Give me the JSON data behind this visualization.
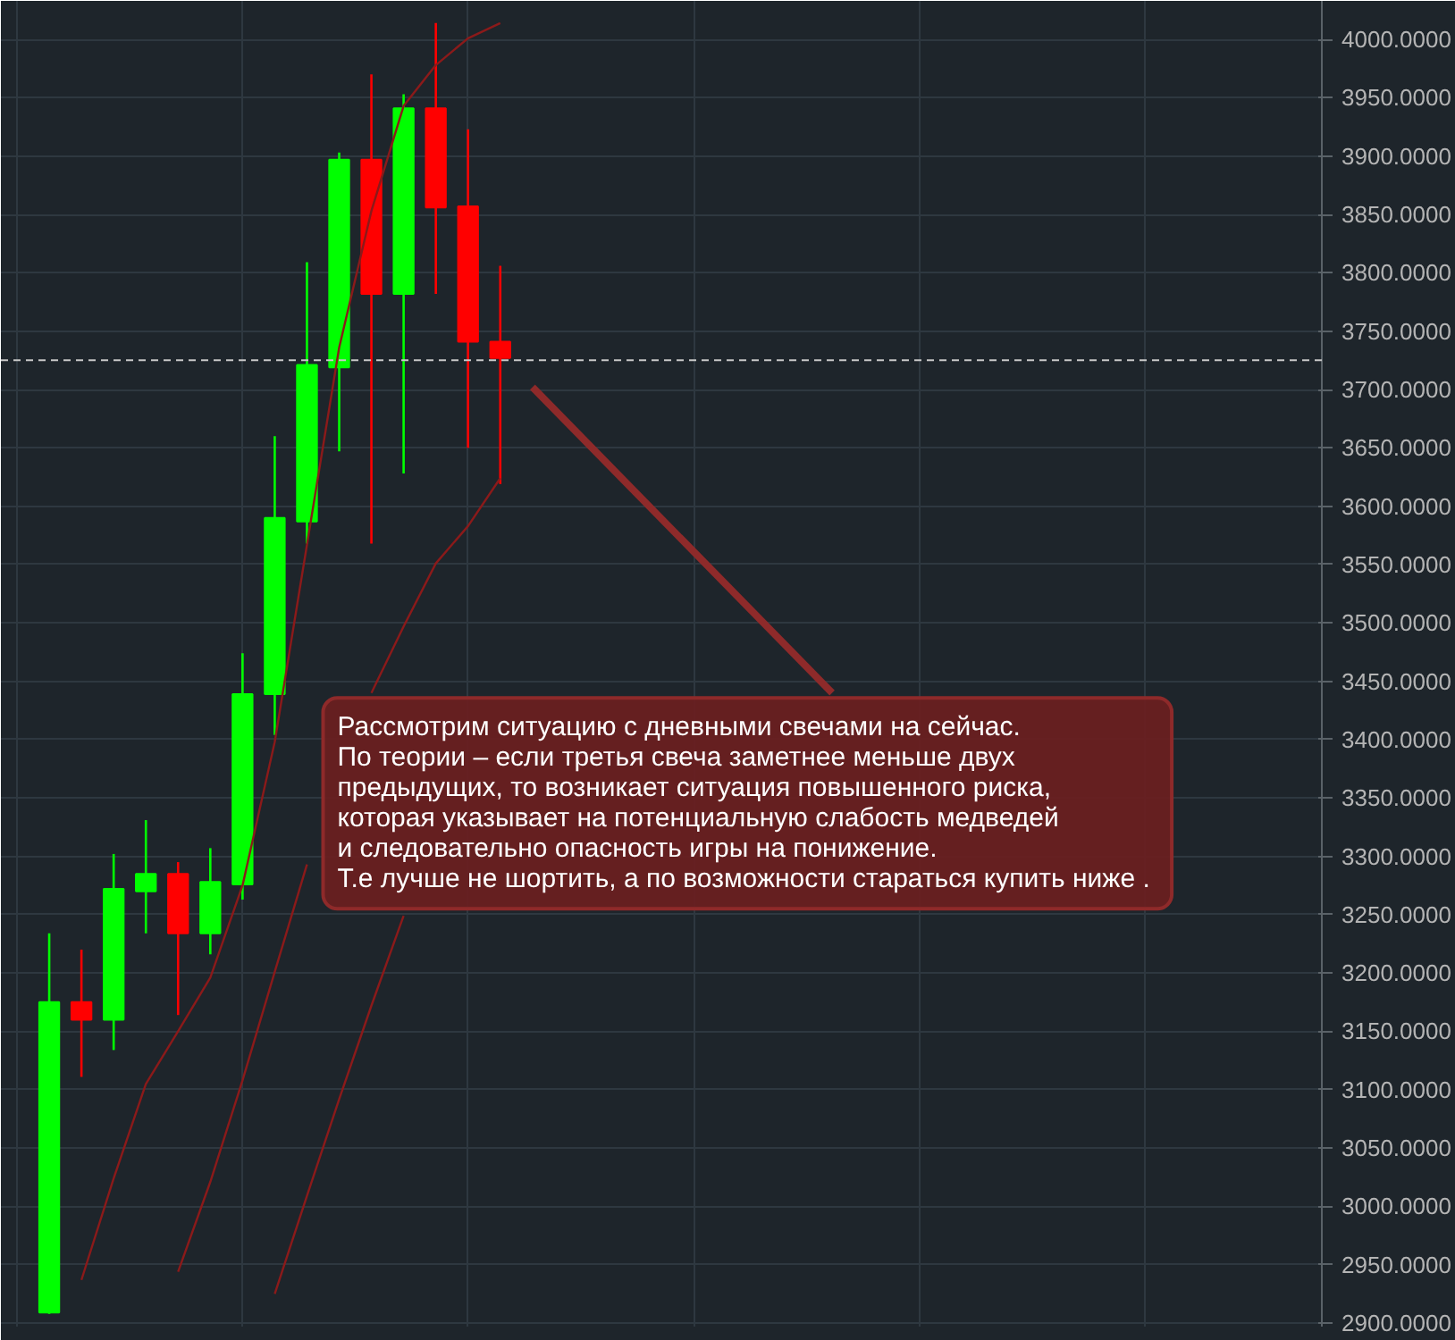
{
  "chart_data": {
    "type": "candlestick",
    "categories": [
      null,
      null,
      null,
      null,
      null,
      null,
      null,
      null,
      null,
      null,
      null,
      null,
      null,
      null,
      null,
      null,
      null,
      null,
      null,
      null,
      null,
      null,
      null,
      null,
      null,
      null,
      null,
      null,
      null,
      null,
      null,
      null,
      null,
      null,
      null,
      null,
      null,
      null,
      null,
      null,
      null
    ],
    "ohlc": [
      null,
      [
        2909,
        3234,
        2908,
        3175
      ],
      [
        3175,
        3220,
        3111,
        3160
      ],
      [
        3160,
        3302,
        3134,
        3272
      ],
      [
        3270,
        3331,
        3234,
        3285
      ],
      [
        3285,
        3295,
        3164,
        3234
      ],
      [
        3234,
        3307,
        3216,
        3278
      ],
      [
        3276,
        3474,
        3263,
        3439
      ],
      [
        3439,
        3660,
        3404,
        3590
      ],
      [
        3587,
        3809,
        3568,
        3721
      ],
      [
        3719,
        3903,
        3647,
        3897
      ],
      [
        3897,
        3970,
        3568,
        3782
      ],
      [
        3782,
        3953,
        3628,
        3941
      ],
      [
        3941,
        4014,
        3782,
        3856
      ],
      [
        3857,
        3923,
        3650,
        3741
      ],
      [
        3741,
        3806,
        3619,
        3727
      ],
      null,
      null,
      null,
      null,
      null,
      null,
      null,
      null,
      null,
      null,
      null,
      null,
      null,
      null,
      null,
      null,
      null,
      null,
      null,
      null,
      null,
      null,
      null,
      null,
      null
    ],
    "colors": [
      null,
      "#00ff00",
      "#ff0000",
      "#00ff00",
      "#00ff00",
      "#ff0000",
      "#00ff00",
      "#00ff00",
      "#00ff00",
      "#00ff00",
      "#00ff00",
      "#ff0000",
      "#00ff00",
      "#ff0000",
      "#ff0000",
      "#ff0000",
      null,
      null,
      null,
      null,
      null,
      null,
      null,
      null,
      null,
      null,
      null,
      null,
      null,
      null,
      null,
      null,
      null,
      null,
      null,
      null,
      null,
      null,
      null,
      null,
      null
    ],
    "series": [
      {
        "type": "line",
        "color": "#8b1a1a",
        "values": [
          null,
          null,
          2937,
          3024,
          3105,
          3150,
          3196,
          3275,
          3398,
          3567,
          3736,
          3853,
          3943,
          3978,
          4001,
          4014,
          null,
          null,
          null,
          null,
          null,
          null,
          null,
          null,
          null,
          null,
          null,
          null,
          null,
          null,
          null,
          null,
          null,
          null,
          null,
          null,
          null,
          null,
          null,
          null,
          null
        ]
      },
      {
        "type": "line",
        "color": "#8b1a1a",
        "values": [
          null,
          null,
          null,
          null,
          null,
          2944,
          3021,
          3108,
          3201,
          3293,
          null,
          3440,
          3497,
          3551,
          3583,
          3624,
          null,
          null,
          null,
          null,
          null,
          null,
          null,
          null,
          null,
          null,
          null,
          null,
          null,
          null,
          null,
          null,
          null,
          null,
          null,
          null,
          null,
          null,
          null,
          null,
          null
        ]
      },
      {
        "type": "line",
        "color": "#8b1a1a",
        "values": [
          null,
          null,
          null,
          null,
          null,
          null,
          null,
          null,
          2925,
          3009,
          3092,
          3172,
          3249,
          null,
          null,
          null,
          null,
          null,
          null,
          null,
          null,
          null,
          null,
          null,
          null,
          null,
          null,
          null,
          null,
          null,
          null,
          null,
          null,
          null,
          null,
          null,
          null,
          null,
          null,
          null,
          null
        ]
      }
    ],
    "ylim": [
      2897,
      4033
    ],
    "yticks": [
      {
        "value": 2900,
        "label": "2900.0000"
      },
      {
        "value": 2950,
        "label": "2950.0000"
      },
      {
        "value": 3000,
        "label": "3000.0000"
      },
      {
        "value": 3050,
        "label": "3050.0000"
      },
      {
        "value": 3100,
        "label": "3100.0000"
      },
      {
        "value": 3150,
        "label": "3150.0000"
      },
      {
        "value": 3200,
        "label": "3200.0000"
      },
      {
        "value": 3250,
        "label": "3250.0000"
      },
      {
        "value": 3300,
        "label": "3300.0000"
      },
      {
        "value": 3350,
        "label": "3350.0000"
      },
      {
        "value": 3400,
        "label": "3400.0000"
      },
      {
        "value": 3450,
        "label": "3450.0000"
      },
      {
        "value": 3500,
        "label": "3500.0000"
      },
      {
        "value": 3550,
        "label": "3550.0000"
      },
      {
        "value": 3600,
        "label": "3600.0000"
      },
      {
        "value": 3650,
        "label": "3650.0000"
      },
      {
        "value": 3700,
        "label": "3700.0000"
      },
      {
        "value": 3750,
        "label": "3750.0000"
      },
      {
        "value": 3800,
        "label": "3800.0000"
      },
      {
        "value": 3850,
        "label": "3850.0000"
      },
      {
        "value": 3900,
        "label": "3900.0000"
      },
      {
        "value": 3950,
        "label": "3950.0000"
      },
      {
        "value": 4000,
        "label": "4000.0000"
      }
    ],
    "tick_labels": "y",
    "grid": true,
    "ref_lines": [
      {
        "axis": "y",
        "value": 3725,
        "color": "#c8c8c8",
        "line_style": "dashed"
      }
    ],
    "annotations": [
      "Рассмотрим ситуацию с дневными свечами на сейчас.\nПо теории – если третья свеча заметнее меньше двух\nпредыдущих, то возникает ситуация повышенного риска,\nкоторая указывает на потенциальную слабость медведей\nи следовательно опасность игры на понижение.\nТ.е лучше не шортить,  а по возможности стараться купить ниже ."
    ]
  }
}
